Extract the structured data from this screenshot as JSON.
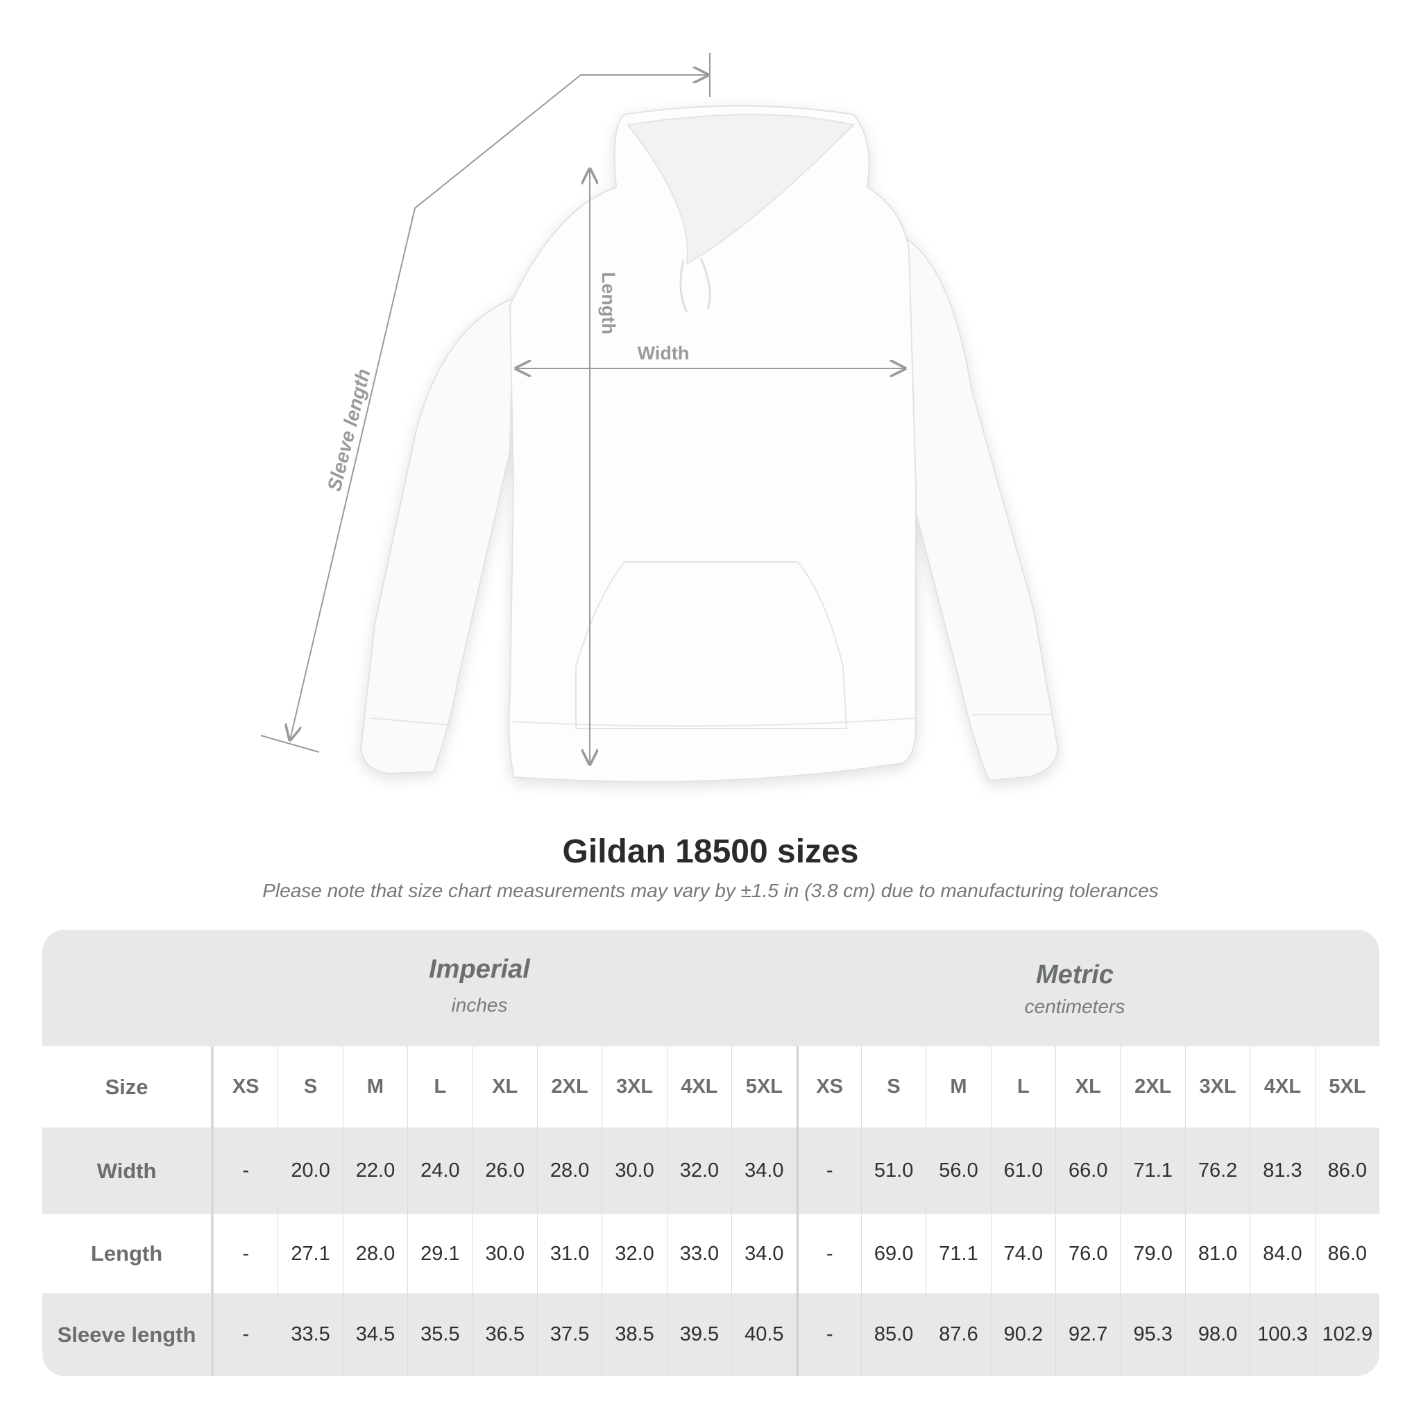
{
  "diagram": {
    "labels": {
      "length": "Length",
      "width": "Width",
      "sleeve_length": "Sleeve length"
    },
    "line_color": "#9a9a9a"
  },
  "title": "Gildan 18500 sizes",
  "note": "Please note that size chart measurements may vary by ±1.5 in (3.8 cm) due to manufacturing tolerances",
  "table": {
    "imperial": {
      "name": "Imperial",
      "unit": "inches"
    },
    "metric": {
      "name": "Metric",
      "unit": "centimeters"
    },
    "size_label": "Size",
    "sizes": [
      "XS",
      "S",
      "M",
      "L",
      "XL",
      "2XL",
      "3XL",
      "4XL",
      "5XL"
    ],
    "rows": [
      {
        "label": "Width",
        "imperial": [
          "-",
          "20.0",
          "22.0",
          "24.0",
          "26.0",
          "28.0",
          "30.0",
          "32.0",
          "34.0"
        ],
        "metric": [
          "-",
          "51.0",
          "56.0",
          "61.0",
          "66.0",
          "71.1",
          "76.2",
          "81.3",
          "86.0"
        ]
      },
      {
        "label": "Length",
        "imperial": [
          "-",
          "27.1",
          "28.0",
          "29.1",
          "30.0",
          "31.0",
          "32.0",
          "33.0",
          "34.0"
        ],
        "metric": [
          "-",
          "69.0",
          "71.1",
          "74.0",
          "76.0",
          "79.0",
          "81.0",
          "84.0",
          "86.0"
        ]
      },
      {
        "label": "Sleeve length",
        "imperial": [
          "-",
          "33.5",
          "34.5",
          "35.5",
          "36.5",
          "37.5",
          "38.5",
          "39.5",
          "40.5"
        ],
        "metric": [
          "-",
          "85.0",
          "87.6",
          "90.2",
          "92.7",
          "95.3",
          "98.0",
          "100.3",
          "102.9"
        ]
      }
    ]
  }
}
